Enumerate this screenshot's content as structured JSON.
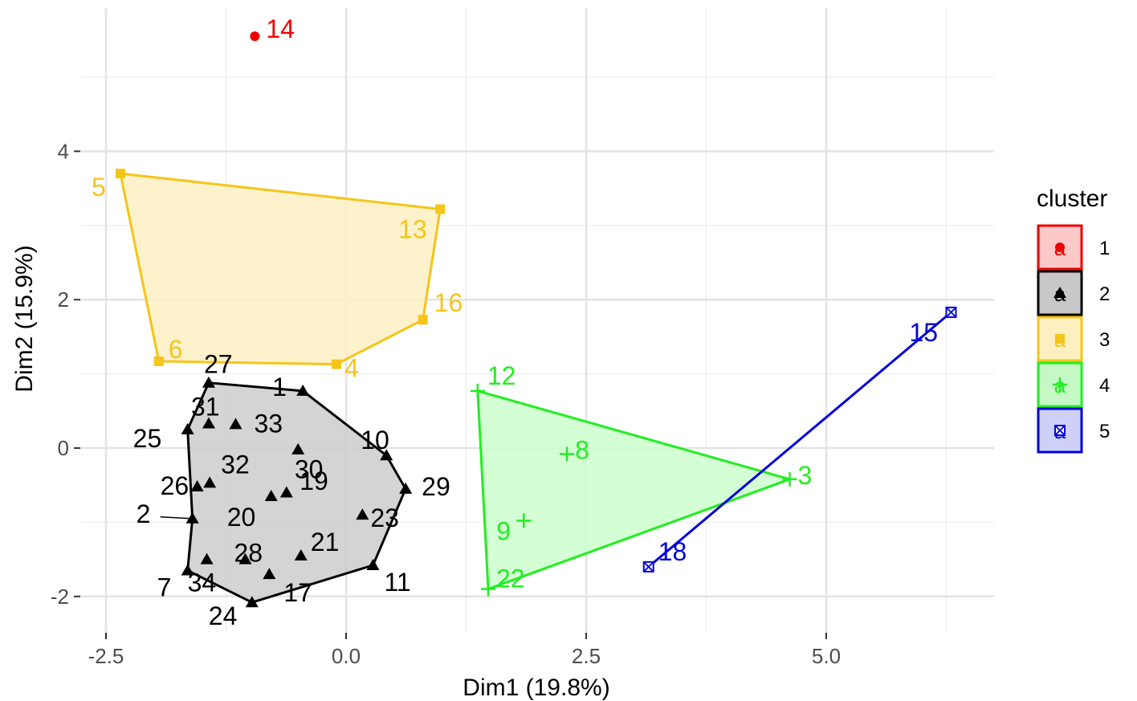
{
  "chart_data": {
    "type": "scatter",
    "xlabel": "Dim1 (19.8%)",
    "ylabel": "Dim2 (15.9%)",
    "xlim": [
      -2.8,
      6.7
    ],
    "ylim": [
      -2.45,
      5.9
    ],
    "x_ticks": [
      -2.5,
      0.0,
      2.5,
      5.0
    ],
    "x_tick_labels": [
      "-2.5",
      "0.0",
      "2.5",
      "5.0"
    ],
    "y_ticks": [
      -2,
      0,
      2,
      4
    ],
    "y_tick_labels": [
      "-2",
      "0",
      "2",
      "4"
    ],
    "grid": true,
    "legend": {
      "title": "cluster",
      "placement": "right",
      "entries": [
        "1",
        "2",
        "3",
        "4",
        "5"
      ]
    },
    "clusters": [
      {
        "name": "1",
        "color": "#ee0000",
        "shape": "circle",
        "hull": [],
        "points": [
          {
            "label": "14",
            "x": -0.95,
            "y": 5.55
          }
        ]
      },
      {
        "name": "2",
        "color": "#000000",
        "fill": "#cccccc",
        "shape": "triangle",
        "hull": [
          "27",
          "1",
          "10",
          "29",
          "11",
          "24",
          "7",
          "2",
          "25"
        ],
        "points": [
          {
            "label": "1",
            "x": -0.45,
            "y": 0.77
          },
          {
            "label": "2",
            "x": -1.6,
            "y": -0.95
          },
          {
            "label": "7",
            "x": -1.65,
            "y": -1.65
          },
          {
            "label": "10",
            "x": 0.42,
            "y": -0.1
          },
          {
            "label": "11",
            "x": 0.28,
            "y": -1.58
          },
          {
            "label": "17",
            "x": -0.8,
            "y": -1.7
          },
          {
            "label": "19",
            "x": -0.5,
            "y": -0.02
          },
          {
            "label": "20",
            "x": -0.78,
            "y": -0.65
          },
          {
            "label": "21",
            "x": -0.47,
            "y": -1.45
          },
          {
            "label": "23",
            "x": 0.17,
            "y": -0.9
          },
          {
            "label": "24",
            "x": -0.98,
            "y": -2.08
          },
          {
            "label": "25",
            "x": -1.65,
            "y": 0.25
          },
          {
            "label": "26",
            "x": -1.55,
            "y": -0.52
          },
          {
            "label": "27",
            "x": -1.43,
            "y": 0.88
          },
          {
            "label": "28",
            "x": -1.05,
            "y": -1.5
          },
          {
            "label": "29",
            "x": 0.62,
            "y": -0.55
          },
          {
            "label": "30",
            "x": -0.62,
            "y": -0.6
          },
          {
            "label": "31",
            "x": -1.43,
            "y": 0.33
          },
          {
            "label": "32",
            "x": -1.42,
            "y": -0.47
          },
          {
            "label": "33",
            "x": -1.15,
            "y": 0.32
          },
          {
            "label": "34",
            "x": -1.45,
            "y": -1.5
          }
        ]
      },
      {
        "name": "3",
        "color": "#f5c518",
        "fill": "#fdf0c2",
        "shape": "square",
        "hull": [
          "5",
          "13",
          "16",
          "4",
          "6"
        ],
        "points": [
          {
            "label": "4",
            "x": -0.1,
            "y": 1.13
          },
          {
            "label": "5",
            "x": -2.35,
            "y": 3.7
          },
          {
            "label": "6",
            "x": -1.95,
            "y": 1.17
          },
          {
            "label": "13",
            "x": 0.98,
            "y": 3.22
          },
          {
            "label": "16",
            "x": 0.8,
            "y": 1.73
          }
        ]
      },
      {
        "name": "4",
        "color": "#22ee22",
        "fill": "#ccffcc",
        "shape": "plus",
        "hull": [
          "12",
          "3",
          "22"
        ],
        "points": [
          {
            "label": "3",
            "x": 4.62,
            "y": -0.42
          },
          {
            "label": "8",
            "x": 2.3,
            "y": -0.08
          },
          {
            "label": "9",
            "x": 1.85,
            "y": -0.98
          },
          {
            "label": "12",
            "x": 1.37,
            "y": 0.77
          },
          {
            "label": "22",
            "x": 1.48,
            "y": -1.9
          }
        ]
      },
      {
        "name": "5",
        "color": "#0000dd",
        "shape": "square-cross",
        "hull": [
          "15",
          "18"
        ],
        "points": [
          {
            "label": "15",
            "x": 6.3,
            "y": 1.83
          },
          {
            "label": "18",
            "x": 3.15,
            "y": -1.6
          }
        ]
      }
    ]
  }
}
